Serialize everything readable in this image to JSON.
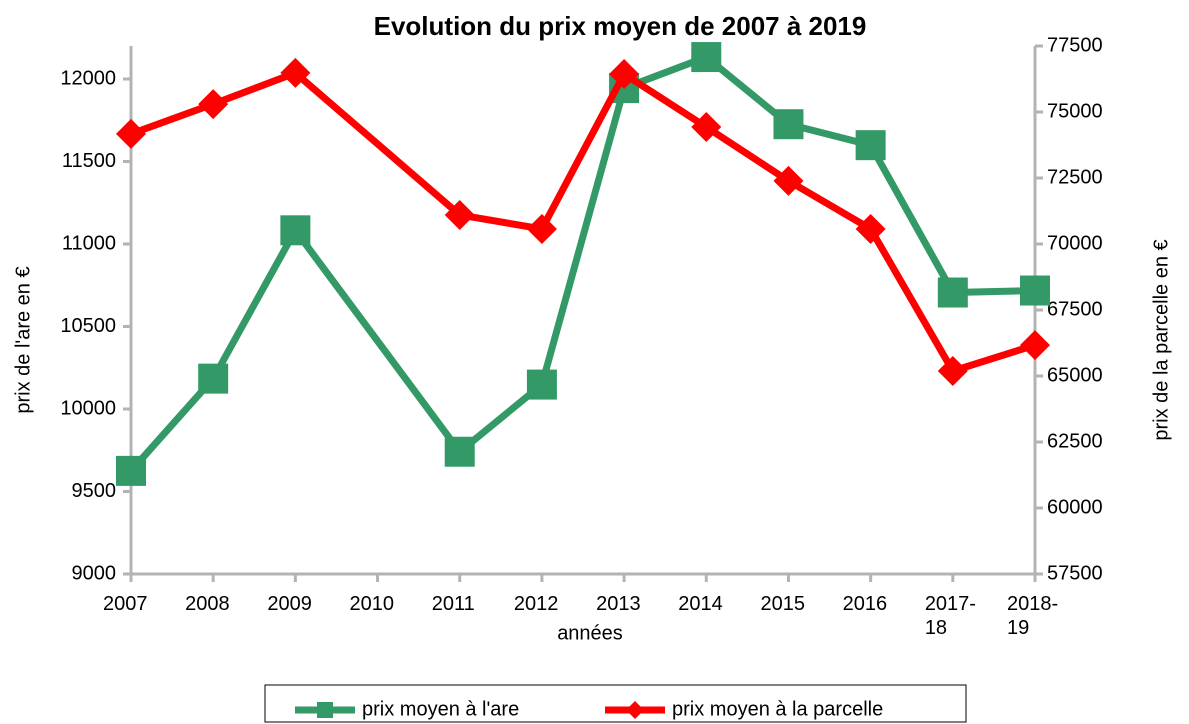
{
  "chart_data": {
    "type": "line",
    "title": "Evolution du prix moyen de 2007 à 2019",
    "xlabel": "années",
    "ylabel": "prix de l'are en €",
    "y2label": "prix de la parcelle en €",
    "categories": [
      "2007",
      "2008",
      "2009",
      "2010",
      "2011",
      "2012",
      "2013",
      "2014",
      "2015",
      "2016",
      "2017-18",
      "2018-19"
    ],
    "series": [
      {
        "name": "prix moyen à l'are",
        "color": "#339966",
        "marker": "square",
        "values": [
          9625,
          10184,
          11083,
          null,
          9741,
          10148,
          11945,
          12133,
          11726,
          11599,
          10706,
          10718
        ]
      },
      {
        "name": "prix moyen à la parcelle",
        "color": "#ff0000",
        "marker": "diamond",
        "axis": "y2",
        "values": [
          74170,
          75300,
          76480,
          null,
          71100,
          70570,
          76440,
          74430,
          72390,
          70570,
          65190,
          66170
        ]
      }
    ],
    "ylim": [
      9000,
      12200
    ],
    "yticks": [
      9000,
      9500,
      10000,
      10500,
      11000,
      11500,
      12000
    ],
    "y2lim": [
      57500,
      77500
    ],
    "y2ticks": [
      57500,
      60000,
      62500,
      65000,
      67500,
      70000,
      72500,
      75000,
      77500
    ],
    "connect_gaps": true,
    "grid": false,
    "legend": "bottom"
  }
}
